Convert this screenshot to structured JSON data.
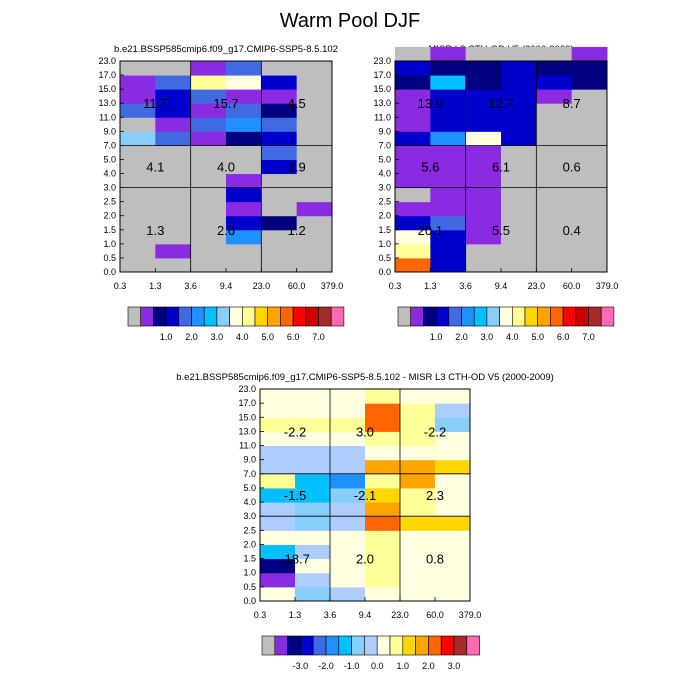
{
  "figure_title": "Warm Pool DJF",
  "chart_data": [
    {
      "type": "heatmap",
      "title": "b.e21.BSSP585cmip6.f09_g17.CMIP6-SSP5-8.5.102",
      "x_tick_labels": [
        "0.3",
        "1.3",
        "3.6",
        "9.4",
        "23.0",
        "60.0",
        "379.0"
      ],
      "y_tick_labels": [
        "0.0",
        "0.5",
        "1.0",
        "1.5",
        "2.0",
        "2.5",
        "3.0",
        "4.0",
        "5.0",
        "7.0",
        "9.0",
        "11.0",
        "13.0",
        "15.0",
        "17.0",
        "23.0"
      ],
      "region_values": [
        [
          "11.7",
          "15.7",
          "4.5"
        ],
        [
          "4.1",
          "4.0",
          "2.9"
        ],
        [
          "1.3",
          "2.6",
          "1.2"
        ]
      ],
      "cells": [
        [
          0,
          0,
          0,
          0,
          0,
          0
        ],
        [
          0,
          1,
          0,
          0,
          0,
          0
        ],
        [
          0,
          0,
          0,
          5,
          0,
          0
        ],
        [
          0,
          0,
          0,
          3,
          2,
          0
        ],
        [
          0,
          0,
          0,
          1,
          0,
          1
        ],
        [
          0,
          0,
          0,
          3,
          0,
          0
        ],
        [
          0,
          0,
          0,
          1,
          0,
          0
        ],
        [
          0,
          0,
          0,
          0,
          3,
          0
        ],
        [
          0,
          0,
          0,
          0,
          4,
          0
        ],
        [
          7,
          4,
          1,
          2,
          3,
          0
        ],
        [
          0,
          1,
          4,
          5,
          4,
          0
        ],
        [
          4,
          3,
          1,
          4,
          2,
          0
        ],
        [
          1,
          3,
          4,
          1,
          1,
          0
        ],
        [
          1,
          4,
          9,
          8,
          3,
          0
        ],
        [
          0,
          0,
          1,
          4,
          0,
          0
        ]
      ],
      "legend_labels": [
        "1.0",
        "2.0",
        "3.0",
        "4.0",
        "5.0",
        "6.0",
        "7.0"
      ]
    },
    {
      "type": "heatmap",
      "title": "MISR L3 CTH-OD V5 (2000-2009)",
      "x_tick_labels": [
        "0.3",
        "1.3",
        "3.6",
        "9.4",
        "23.0",
        "60.0",
        "379.0"
      ],
      "y_tick_labels": [
        "0.0",
        "0.5",
        "1.0",
        "1.5",
        "2.0",
        "2.5",
        "3.0",
        "4.0",
        "5.0",
        "7.0",
        "9.0",
        "11.0",
        "13.0",
        "15.0",
        "17.0",
        "23.0"
      ],
      "region_values": [
        [
          "13.9",
          "12.7",
          "8.7"
        ],
        [
          "5.6",
          "6.1",
          "0.6"
        ],
        [
          "20.1",
          "5.5",
          "0.4"
        ]
      ],
      "cells": [
        [
          12,
          3,
          0,
          0,
          0,
          0
        ],
        [
          9,
          3,
          0,
          0,
          0,
          0
        ],
        [
          8,
          3,
          1,
          0,
          0,
          0
        ],
        [
          3,
          4,
          1,
          0,
          0,
          0
        ],
        [
          1,
          1,
          1,
          0,
          0,
          0
        ],
        [
          0,
          1,
          1,
          0,
          0,
          0
        ],
        [
          1,
          1,
          1,
          0,
          0,
          0
        ],
        [
          1,
          1,
          1,
          0,
          0,
          0
        ],
        [
          1,
          1,
          1,
          0,
          0,
          0
        ],
        [
          3,
          5,
          8,
          3,
          0,
          0
        ],
        [
          1,
          3,
          3,
          3,
          0,
          0
        ],
        [
          1,
          3,
          3,
          3,
          0,
          0
        ],
        [
          1,
          3,
          3,
          3,
          1,
          0
        ],
        [
          2,
          6,
          2,
          3,
          3,
          2
        ],
        [
          3,
          2,
          2,
          3,
          2,
          2
        ],
        [
          0,
          1,
          0,
          0,
          0,
          1
        ]
      ],
      "legend_labels": [
        "1.0",
        "2.0",
        "3.0",
        "4.0",
        "5.0",
        "6.0",
        "7.0"
      ]
    },
    {
      "type": "heatmap",
      "title": "b.e21.BSSP585cmip6.f09_g17.CMIP6-SSP5-8.5.102 - MISR L3 CTH-OD V5 (2000-2009)",
      "x_tick_labels": [
        "0.3",
        "1.3",
        "3.6",
        "9.4",
        "23.0",
        "60.0",
        "379.0"
      ],
      "y_tick_labels": [
        "0.0",
        "0.5",
        "1.0",
        "1.5",
        "2.0",
        "2.5",
        "3.0",
        "4.0",
        "5.0",
        "7.0",
        "9.0",
        "11.0",
        "13.0",
        "15.0",
        "17.0",
        "23.0"
      ],
      "region_values": [
        [
          "-2.2",
          "3.0",
          "-2.2"
        ],
        [
          "-1.5",
          "-2.1",
          "2.3"
        ],
        [
          "-18.7",
          "2.0",
          "0.8"
        ]
      ],
      "cells": [
        [
          9,
          7,
          8,
          9,
          9,
          9
        ],
        [
          1,
          8,
          9,
          10,
          9,
          9
        ],
        [
          2,
          9,
          9,
          10,
          9,
          9
        ],
        [
          6,
          8,
          9,
          10,
          9,
          9
        ],
        [
          9,
          9,
          9,
          10,
          9,
          9
        ],
        [
          8,
          7,
          8,
          13,
          11,
          11
        ],
        [
          8,
          7,
          8,
          12,
          10,
          9
        ],
        [
          6,
          6,
          7,
          11,
          10,
          9
        ],
        [
          10,
          6,
          5,
          10,
          12,
          9
        ],
        [
          8,
          8,
          8,
          12,
          12,
          11
        ],
        [
          8,
          8,
          8,
          9,
          9,
          9
        ],
        [
          9,
          9,
          9,
          10,
          10,
          9
        ],
        [
          10,
          10,
          10,
          13,
          10,
          7
        ],
        [
          9,
          9,
          9,
          13,
          10,
          8
        ],
        [
          9,
          9,
          9,
          10,
          9,
          9
        ]
      ],
      "legend_labels": [
        "-3.0",
        "-2.0",
        "-1.0",
        "0.0",
        "1.0",
        "2.0",
        "3.0"
      ]
    }
  ],
  "palette_colors": [
    "#bebebe",
    "#8a2be2",
    "#000080",
    "#0000cd",
    "#4169e1",
    "#1e90ff",
    "#00bfff",
    "#87cefa",
    "#ffffe0",
    "#ffff99",
    "#ffd700",
    "#ffa500",
    "#ff6600",
    "#ff0000",
    "#cd0000",
    "#a52a2a",
    "#ff69b4"
  ],
  "diff_palette_colors": [
    "#bebebe",
    "#8a2be2",
    "#000080",
    "#0000cd",
    "#4169e1",
    "#1e90ff",
    "#00bfff",
    "#87cefa",
    "#aecdff",
    "#ffffe0",
    "#ffff99",
    "#ffd700",
    "#ffa500",
    "#ff6600",
    "#ff0000",
    "#a52a2a",
    "#ff69b4"
  ]
}
